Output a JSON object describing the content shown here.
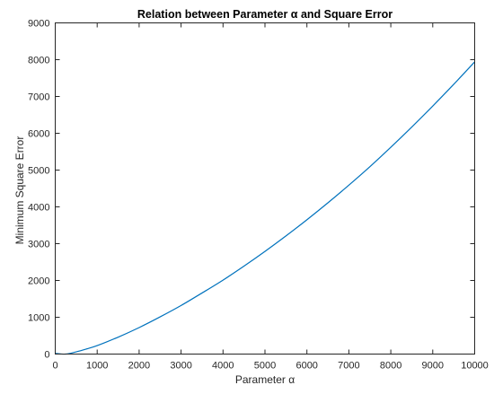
{
  "chart_data": {
    "type": "line",
    "title": "Relation between Parameter α and Square Error",
    "xlabel": "Parameter α",
    "ylabel": "Minimum Square Error",
    "xlim": [
      0,
      10000
    ],
    "ylim": [
      0,
      9000
    ],
    "x_ticks": [
      0,
      1000,
      2000,
      3000,
      4000,
      5000,
      6000,
      7000,
      8000,
      9000,
      10000
    ],
    "y_ticks": [
      0,
      1000,
      2000,
      3000,
      4000,
      5000,
      6000,
      7000,
      8000,
      9000
    ],
    "grid": false,
    "line_color": "#0072BD",
    "series": [
      {
        "x": [
          0,
          250,
          500,
          750,
          1000,
          1500,
          2000,
          2500,
          3000,
          3500,
          4000,
          4500,
          5000,
          5500,
          6000,
          6500,
          7000,
          7500,
          8000,
          8500,
          9000,
          9500,
          10000
        ],
        "values": [
          20,
          0,
          60,
          140,
          230,
          460,
          720,
          1010,
          1320,
          1660,
          2010,
          2390,
          2790,
          3210,
          3650,
          4110,
          4590,
          5090,
          5620,
          6170,
          6740,
          7330,
          7940
        ]
      }
    ]
  }
}
